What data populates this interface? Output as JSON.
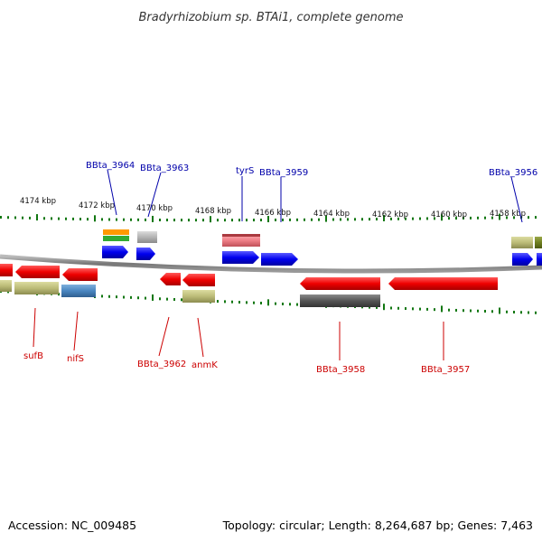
{
  "title": "Bradyrhizobium sp. BTAi1, complete genome",
  "footer": {
    "accession": "Accession: NC_009485",
    "summary": "Topology: circular; Length: 8,264,687 bp; Genes: 7,463"
  },
  "colors": {
    "forward_label": "#0000aa",
    "reverse_label": "#cc0000",
    "tick": "#117711",
    "backbone": "#8a8a8a",
    "cds_forward": "#0000ee",
    "cds_reverse": "#ee0000"
  },
  "ticks": [
    "4174 kbp",
    "4172 kbp",
    "4170 kbp",
    "4168 kbp",
    "4166 kbp",
    "4164 kbp",
    "4162 kbp",
    "4160 kbp",
    "4158 kbp"
  ],
  "labels_forward": [
    "BBta_3964",
    "BBta_3963",
    "tyrS",
    "BBta_3959",
    "BBta_3956"
  ],
  "labels_reverse": [
    "sufB",
    "nifS",
    "BBta_3962",
    "anmK",
    "BBta_3958",
    "BBta_3957"
  ]
}
